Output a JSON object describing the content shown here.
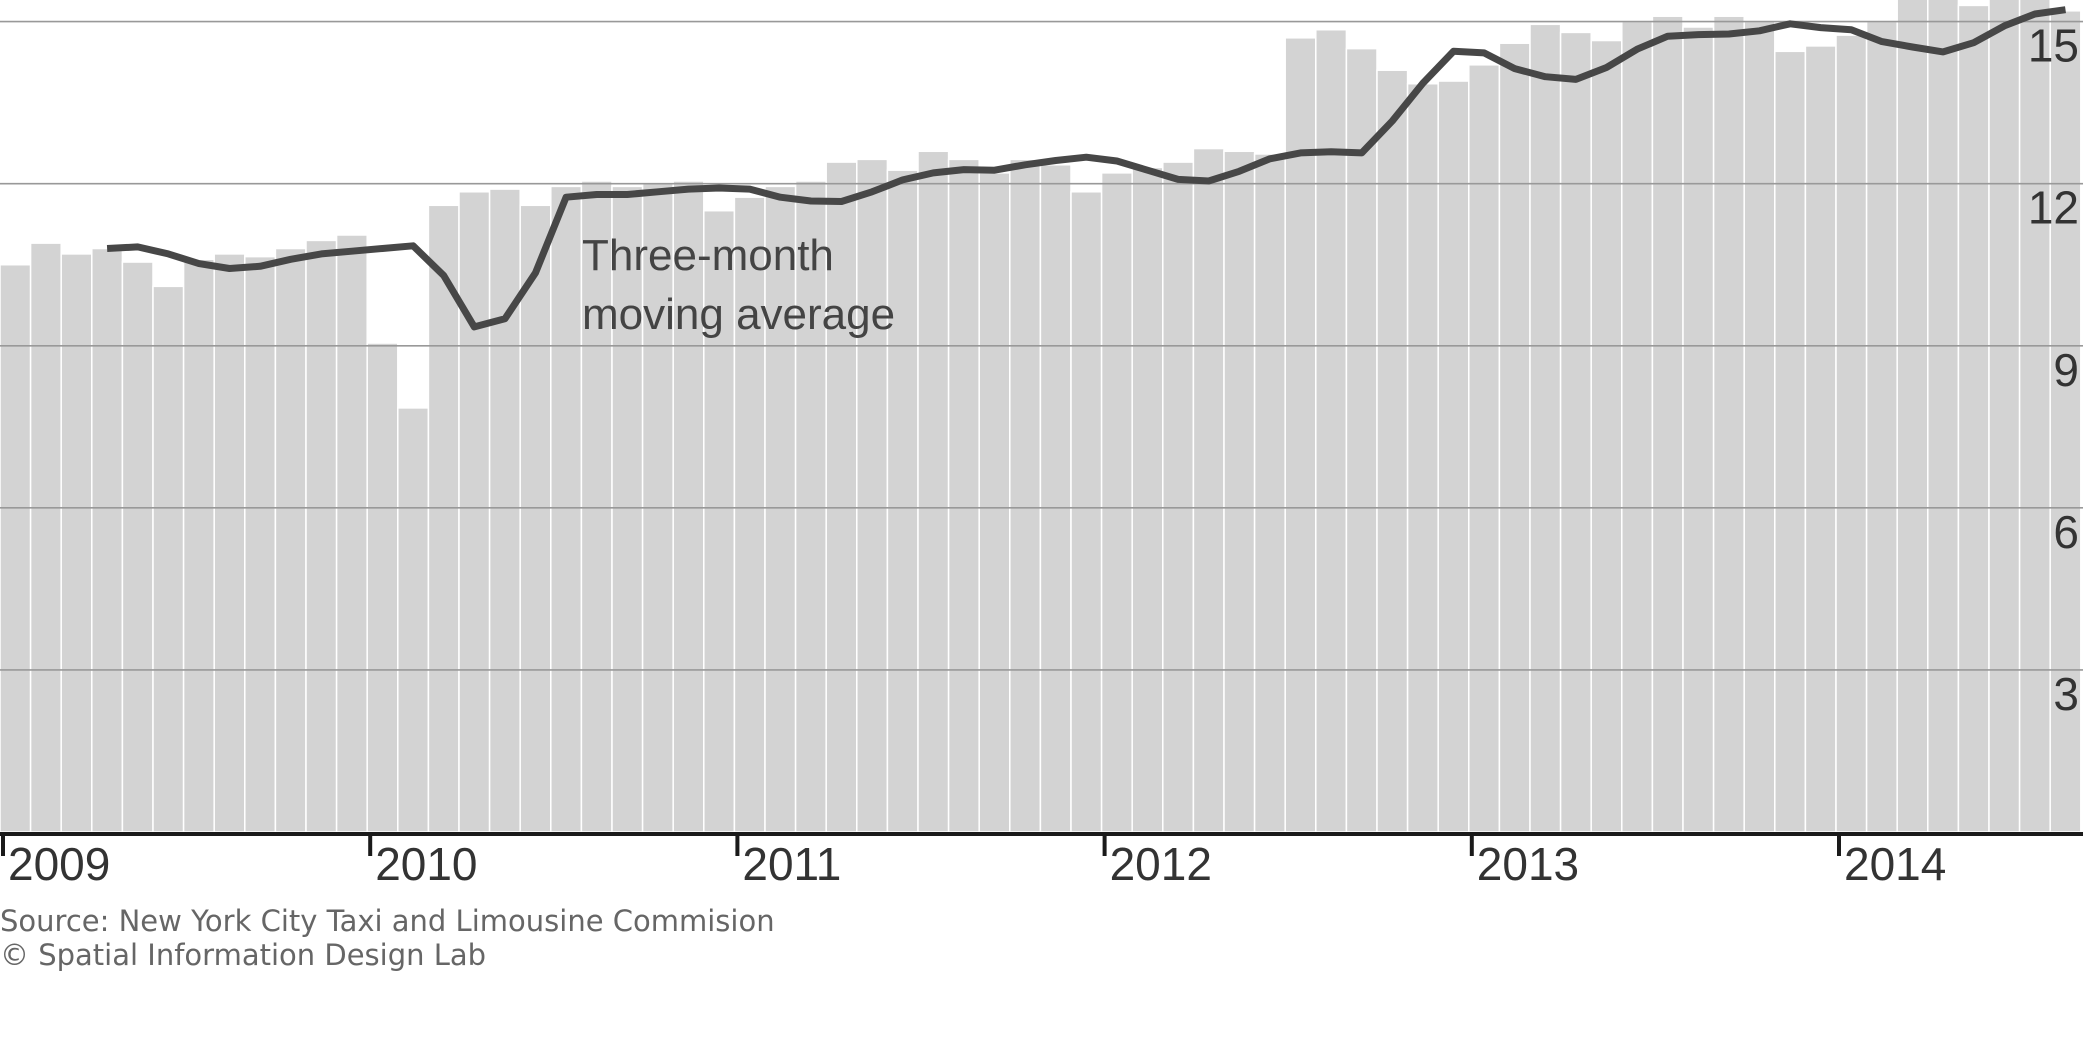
{
  "chart_data": {
    "type": "bar",
    "annotation": [
      "Three-month",
      "moving average"
    ],
    "source_lines": [
      "Source: New York City Taxi and Limousine Commision",
      "© Spatial Information Design Lab"
    ],
    "y_ticks": [
      3,
      6,
      9,
      12,
      15
    ],
    "ylim": [
      0,
      15.4
    ],
    "years": [
      "2009",
      "2010",
      "2011",
      "2012",
      "2013",
      "2014"
    ],
    "grid": true,
    "colors": {
      "bar": "#d3d3d3",
      "line": "#474747",
      "grid": "#999999",
      "axis": "#1a1a1a"
    },
    "x": [
      "2009-01",
      "2009-02",
      "2009-03",
      "2009-04",
      "2009-05",
      "2009-06",
      "2009-07",
      "2009-08",
      "2009-09",
      "2009-10",
      "2009-11",
      "2009-12",
      "2010-01",
      "2010-02",
      "2010-03",
      "2010-04",
      "2010-05",
      "2010-06",
      "2010-07",
      "2010-08",
      "2010-09",
      "2010-10",
      "2010-11",
      "2010-12",
      "2011-01",
      "2011-02",
      "2011-03",
      "2011-04",
      "2011-05",
      "2011-06",
      "2011-07",
      "2011-08",
      "2011-09",
      "2011-10",
      "2011-11",
      "2011-12",
      "2012-01",
      "2012-02",
      "2012-03",
      "2012-04",
      "2012-05",
      "2012-06",
      "2012-07",
      "2012-08",
      "2012-09",
      "2012-10",
      "2012-11",
      "2012-12",
      "2013-01",
      "2013-02",
      "2013-03",
      "2013-04",
      "2013-05",
      "2013-06",
      "2013-07",
      "2013-08",
      "2013-09",
      "2013-10",
      "2013-11",
      "2013-12",
      "2014-01",
      "2014-02",
      "2014-03",
      "2014-04",
      "2014-05",
      "2014-06",
      "2014-07",
      "2014-08"
    ],
    "series": [
      {
        "values": [
          10.5,
          10.9,
          10.7,
          10.8,
          10.55,
          10.1,
          10.6,
          10.7,
          10.65,
          10.8,
          10.95,
          11.05,
          9.05,
          7.85,
          11.6,
          11.85,
          11.9,
          11.6,
          11.95,
          12.05,
          11.95,
          12.0,
          12.05,
          11.5,
          11.75,
          11.95,
          12.05,
          12.4,
          12.45,
          12.25,
          12.6,
          12.45,
          12.2,
          12.45,
          12.35,
          11.85,
          12.2,
          12.3,
          12.4,
          12.65,
          12.6,
          12.55,
          14.7,
          14.85,
          14.5,
          14.1,
          13.85,
          13.9,
          14.2,
          14.6,
          14.95,
          14.8,
          14.65,
          15.0,
          15.1,
          14.9,
          15.1,
          15.0,
          14.45,
          14.55,
          14.75,
          15.0,
          15.45,
          15.45,
          15.3,
          15.5,
          15.5,
          15.2
        ]
      },
      {
        "values": [
          null,
          null,
          null,
          10.8,
          10.83,
          10.7,
          10.52,
          10.43,
          10.47,
          10.6,
          10.7,
          10.75,
          10.8,
          10.85,
          10.3,
          9.35,
          9.5,
          10.35,
          11.75,
          11.8,
          11.8,
          11.85,
          11.9,
          11.92,
          11.9,
          11.75,
          11.68,
          11.67,
          11.85,
          12.07,
          12.2,
          12.26,
          12.25,
          12.35,
          12.43,
          12.49,
          12.42,
          12.25,
          12.08,
          12.05,
          12.23,
          12.46,
          12.57,
          12.59,
          12.57,
          13.16,
          13.86,
          14.45,
          14.42,
          14.13,
          13.98,
          13.93,
          14.15,
          14.49,
          14.73,
          14.76,
          14.77,
          14.83,
          14.96,
          14.89,
          14.85,
          14.63,
          14.53,
          14.44,
          14.61,
          14.92,
          15.14,
          15.22
        ]
      }
    ]
  }
}
